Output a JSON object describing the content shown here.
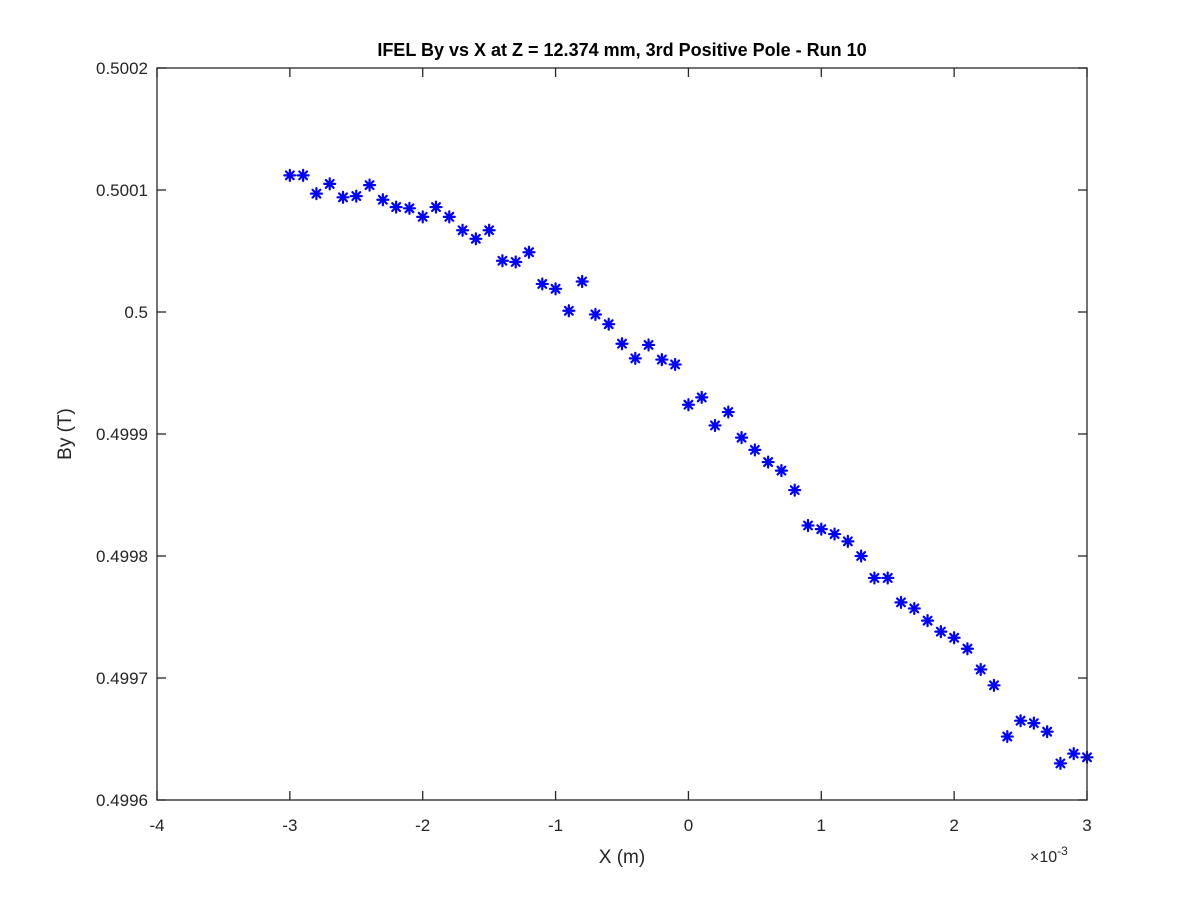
{
  "chart_data": {
    "type": "scatter",
    "title": "IFEL By vs X at Z = 12.374 mm, 3rd Positive Pole - Run 10",
    "xlabel": "X (m)",
    "ylabel": "By (T)",
    "xlim": [
      -0.004,
      0.003
    ],
    "ylim": [
      0.4996,
      0.5002
    ],
    "x_ticks": [
      -0.004,
      -0.003,
      -0.002,
      -0.001,
      0,
      0.001,
      0.002,
      0.003
    ],
    "x_tick_labels": [
      "-4",
      "-3",
      "-2",
      "-1",
      "0",
      "1",
      "2",
      "3"
    ],
    "x_exponent_base": "×10",
    "x_exponent_power": "-3",
    "y_ticks": [
      0.4996,
      0.4997,
      0.4998,
      0.4999,
      0.5,
      0.5001,
      0.5002
    ],
    "y_tick_labels": [
      "0.4996",
      "0.4997",
      "0.4998",
      "0.4999",
      "0.5",
      "0.5001",
      "0.5002"
    ],
    "grid": false,
    "marker": "asterisk",
    "marker_color": "#0000ff",
    "series": [
      {
        "points": [
          [
            -0.003,
            0.500112
          ],
          [
            -0.0029,
            0.500112
          ],
          [
            -0.0028,
            0.500097
          ],
          [
            -0.0027,
            0.500105
          ],
          [
            -0.0026,
            0.500094
          ],
          [
            -0.0025,
            0.500095
          ],
          [
            -0.0024,
            0.500104
          ],
          [
            -0.0023,
            0.500092
          ],
          [
            -0.0022,
            0.500086
          ],
          [
            -0.0021,
            0.500085
          ],
          [
            -0.002,
            0.500078
          ],
          [
            -0.0019,
            0.500086
          ],
          [
            -0.0018,
            0.500078
          ],
          [
            -0.0017,
            0.500067
          ],
          [
            -0.0016,
            0.50006
          ],
          [
            -0.0015,
            0.500067
          ],
          [
            -0.0014,
            0.500042
          ],
          [
            -0.0013,
            0.500041
          ],
          [
            -0.0012,
            0.500049
          ],
          [
            -0.0011,
            0.500023
          ],
          [
            -0.001,
            0.500019
          ],
          [
            -0.0009,
            0.500001
          ],
          [
            -0.0008,
            0.500025
          ],
          [
            -0.0007,
            0.499998
          ],
          [
            -0.0006,
            0.49999
          ],
          [
            -0.0005,
            0.499974
          ],
          [
            -0.0004,
            0.499962
          ],
          [
            -0.0003,
            0.499973
          ],
          [
            -0.0002,
            0.499961
          ],
          [
            -0.0001,
            0.499957
          ],
          [
            0.0,
            0.499924
          ],
          [
            0.0001,
            0.49993
          ],
          [
            0.0002,
            0.499907
          ],
          [
            0.0003,
            0.499918
          ],
          [
            0.0004,
            0.499897
          ],
          [
            0.0005,
            0.499887
          ],
          [
            0.0006,
            0.499877
          ],
          [
            0.0007,
            0.49987
          ],
          [
            0.0008,
            0.499854
          ],
          [
            0.0009,
            0.499825
          ],
          [
            0.001,
            0.499822
          ],
          [
            0.0011,
            0.499818
          ],
          [
            0.0012,
            0.499812
          ],
          [
            0.0013,
            0.4998
          ],
          [
            0.0014,
            0.499782
          ],
          [
            0.0015,
            0.499782
          ],
          [
            0.0016,
            0.499762
          ],
          [
            0.0017,
            0.499757
          ],
          [
            0.0018,
            0.499747
          ],
          [
            0.0019,
            0.499738
          ],
          [
            0.002,
            0.499733
          ],
          [
            0.0021,
            0.499724
          ],
          [
            0.0022,
            0.499707
          ],
          [
            0.0023,
            0.499694
          ],
          [
            0.0024,
            0.499652
          ],
          [
            0.0025,
            0.499665
          ],
          [
            0.0026,
            0.499663
          ],
          [
            0.0027,
            0.499656
          ],
          [
            0.0028,
            0.49963
          ],
          [
            0.0029,
            0.499638
          ],
          [
            0.003,
            0.499635
          ]
        ]
      }
    ]
  }
}
